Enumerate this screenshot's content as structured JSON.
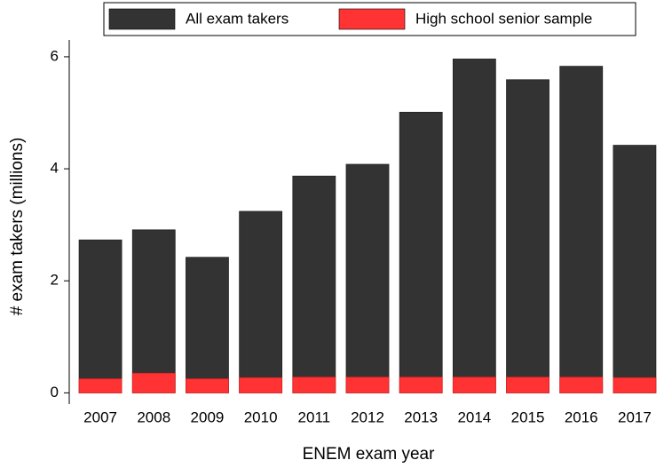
{
  "chart_data": {
    "type": "bar",
    "categories": [
      "2007",
      "2008",
      "2009",
      "2010",
      "2011",
      "2012",
      "2013",
      "2014",
      "2015",
      "2016",
      "2017"
    ],
    "series": [
      {
        "name": "All exam takers",
        "color": "#333333",
        "values": [
          2.73,
          2.91,
          2.42,
          3.24,
          3.87,
          4.08,
          5.01,
          5.96,
          5.59,
          5.83,
          4.42
        ]
      },
      {
        "name": "High school senior sample",
        "color": "#ff3333",
        "values": [
          0.25,
          0.35,
          0.25,
          0.27,
          0.28,
          0.28,
          0.28,
          0.28,
          0.28,
          0.28,
          0.27
        ]
      }
    ],
    "xlabel": "ENEM exam year",
    "ylabel": "# exam takers (millions)",
    "ylim": [
      -0.2,
      6.3
    ],
    "yticks": [
      0,
      2,
      4,
      6
    ],
    "overlay": true,
    "legend": "top"
  }
}
